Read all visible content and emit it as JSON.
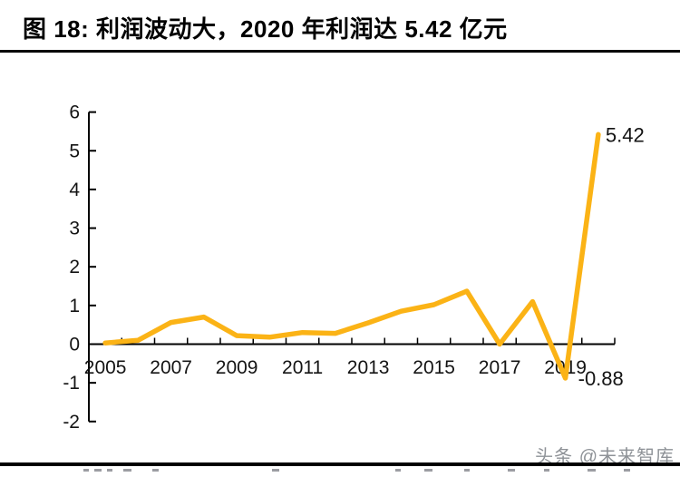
{
  "header": {
    "figure_title": "图 18:  利润波动大，2020 年利润达 5.42 亿元"
  },
  "footer": {
    "watermark": "头条 @未来智库"
  },
  "colors": {
    "line": "#FBB316",
    "axis": "#000000",
    "label_text": "#141414",
    "title_text": "#000000",
    "watermark_text": "#8e9297"
  },
  "chart_data": {
    "type": "line",
    "title": "利润波动大，2020 年利润达 5.42 亿元",
    "unit_label": "亿元",
    "series_name": "利润",
    "categories": [
      "2005",
      "2006",
      "2007",
      "2008",
      "2009",
      "2010",
      "2011",
      "2012",
      "2013",
      "2014",
      "2015",
      "2016",
      "2017",
      "2018",
      "2019",
      "2020"
    ],
    "values": [
      0.03,
      0.1,
      0.56,
      0.7,
      0.22,
      0.18,
      0.3,
      0.28,
      0.55,
      0.85,
      1.02,
      1.37,
      0.0,
      1.1,
      -0.88,
      5.42
    ],
    "x_tick_labels": [
      "2005",
      "2007",
      "2009",
      "2011",
      "2013",
      "2015",
      "2017",
      "2019"
    ],
    "x_label_every": 2,
    "y_ticks": [
      6,
      5,
      4,
      3,
      2,
      1,
      0,
      -1,
      -2
    ],
    "ylim": [
      -2,
      6
    ],
    "grid": false,
    "legend": false,
    "annotations": [
      {
        "text": "5.42",
        "category": "2020",
        "value": 5.42,
        "position": "right-of-point"
      },
      {
        "text": "-0.88",
        "category": "2019",
        "value": -0.88,
        "position": "right-of-point"
      }
    ]
  }
}
